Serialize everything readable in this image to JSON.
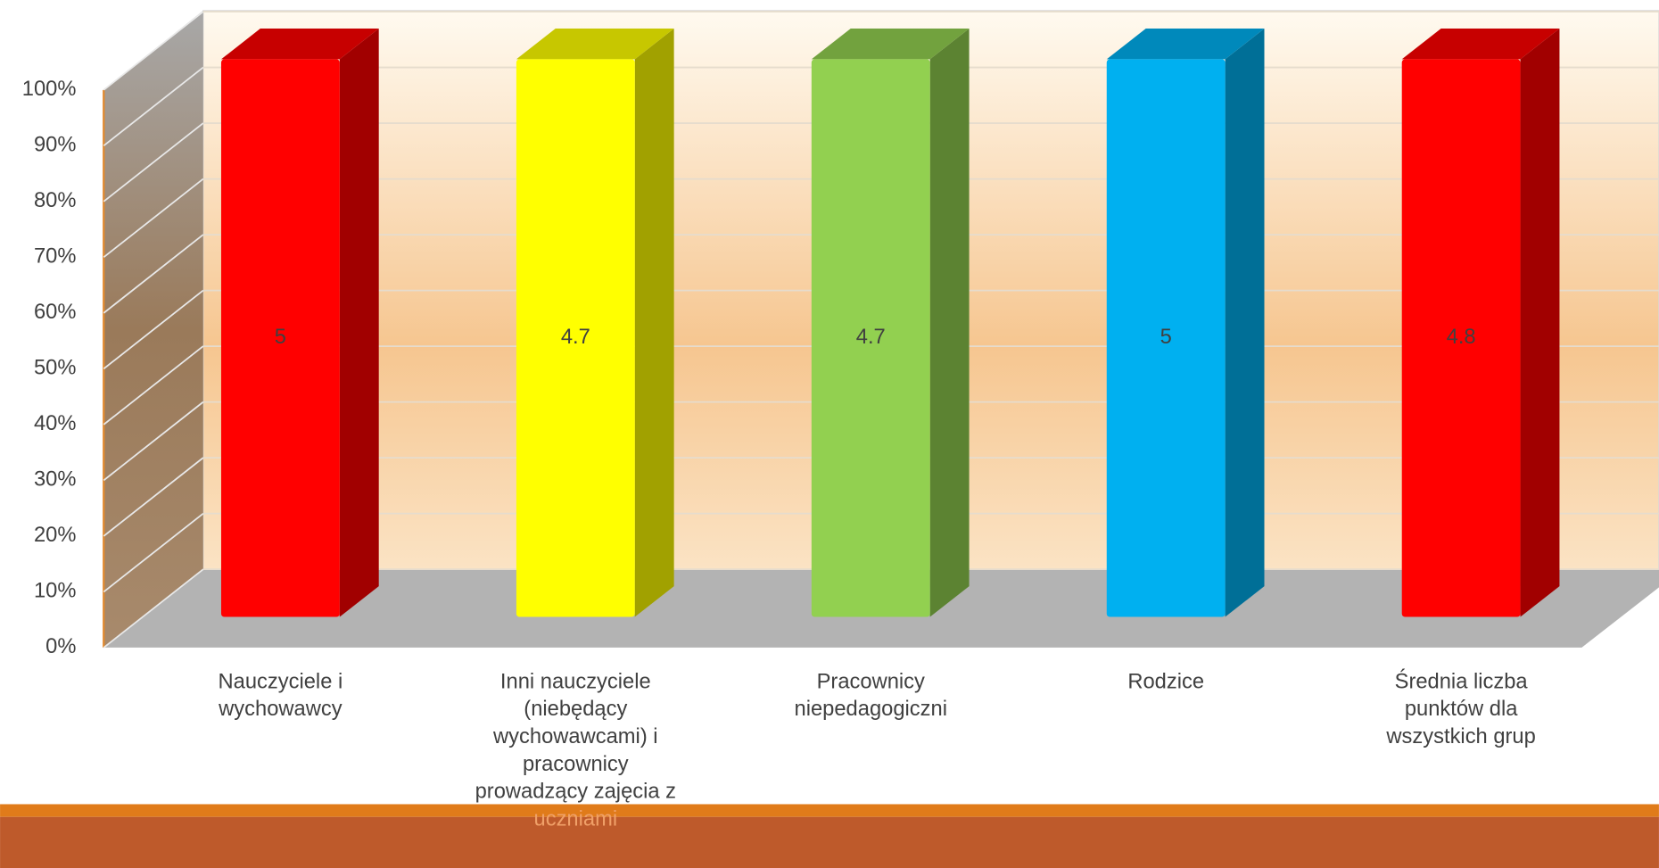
{
  "chart_data": {
    "type": "bar",
    "stacked_percent": true,
    "three_d": true,
    "categories": [
      "Nauczyciele i wychowawcy",
      "Inni nauczyciele (niebędący wychowawcami) i pracownicy prowadzący zajęcia z uczniami",
      "Pracownicy niepedagogiczni",
      "Rodzice",
      "Średnia liczba punktów dla wszystkich grup"
    ],
    "series": [
      {
        "colors": [
          "#ff0000",
          "#ffff00",
          "#92d050",
          "#00b0f0",
          "#ff0000"
        ],
        "values": [
          5,
          4.7,
          4.7,
          5,
          4.8
        ]
      }
    ],
    "ylim": [
      0,
      100
    ],
    "yticks": [
      {
        "value": 0,
        "label": "0%"
      },
      {
        "value": 10,
        "label": "10%"
      },
      {
        "value": 20,
        "label": "20%"
      },
      {
        "value": 30,
        "label": "30%"
      },
      {
        "value": 40,
        "label": "40%"
      },
      {
        "value": 50,
        "label": "50%"
      },
      {
        "value": 60,
        "label": "60%"
      },
      {
        "value": 70,
        "label": "70%"
      },
      {
        "value": 80,
        "label": "80%"
      },
      {
        "value": 90,
        "label": "90%"
      },
      {
        "value": 100,
        "label": "100%"
      }
    ],
    "grid": true
  }
}
